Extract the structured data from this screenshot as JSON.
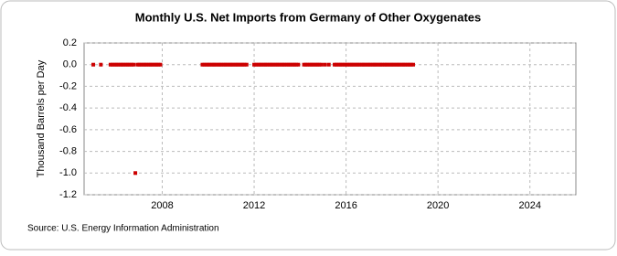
{
  "chart_data": {
    "type": "scatter",
    "title": "Monthly U.S. Net Imports from Germany of Other Oxygenates",
    "y_label": "Thousand Barrels per Day",
    "source": "Source: U.S. Energy Information Administration",
    "color": "#cc0000",
    "grid": true,
    "xlim": [
      2004.6,
      2026.0
    ],
    "xticks": [
      2008,
      2012,
      2016,
      2020,
      2024
    ],
    "ylim": [
      -1.2,
      0.2
    ],
    "yticks": [
      0.2,
      {
        "value": 0,
        "label": "0.0"
      },
      -0.2,
      -0.4,
      -0.6,
      -0.8,
      {
        "value": -1,
        "label": "-1.0"
      },
      -1.2
    ],
    "x": [
      2005,
      2005.33,
      2005.75,
      2005.83,
      2005.92,
      2006,
      2006.08,
      2006.17,
      2006.25,
      2006.33,
      2006.42,
      2006.5,
      2006.58,
      2006.67,
      2006.75,
      2006.83,
      2006.92,
      2007,
      2007.08,
      2007.17,
      2007.25,
      2007.33,
      2007.42,
      2007.5,
      2007.58,
      2007.67,
      2007.75,
      2007.83,
      2007.92,
      2009.75,
      2009.83,
      2009.92,
      2010,
      2010.08,
      2010.17,
      2010.25,
      2010.33,
      2010.42,
      2010.5,
      2010.58,
      2010.67,
      2010.75,
      2010.83,
      2010.92,
      2011,
      2011.08,
      2011.17,
      2011.25,
      2011.33,
      2011.42,
      2011.5,
      2011.58,
      2011.67,
      2012,
      2012.08,
      2012.17,
      2012.25,
      2012.33,
      2012.42,
      2012.5,
      2012.58,
      2012.67,
      2012.75,
      2012.83,
      2012.92,
      2013,
      2013.08,
      2013.17,
      2013.25,
      2013.33,
      2013.42,
      2013.5,
      2013.58,
      2013.67,
      2013.75,
      2013.83,
      2013.92,
      2014.17,
      2014.25,
      2014.33,
      2014.42,
      2014.5,
      2014.58,
      2014.67,
      2014.75,
      2014.83,
      2014.92,
      2015.08,
      2015.25,
      2015.5,
      2015.58,
      2015.67,
      2015.75,
      2015.83,
      2015.92,
      2016,
      2016.08,
      2016.17,
      2016.25,
      2016.33,
      2016.42,
      2016.5,
      2016.58,
      2016.67,
      2016.75,
      2016.83,
      2016.92,
      2017,
      2017.08,
      2017.17,
      2017.25,
      2017.33,
      2017.42,
      2017.5,
      2017.58,
      2017.67,
      2017.75,
      2017.83,
      2017.92,
      2018,
      2018.08,
      2018.17,
      2018.25,
      2018.33,
      2018.42,
      2018.5,
      2018.58,
      2018.67,
      2018.75,
      2018.83,
      2018.92
    ],
    "values": [
      0,
      0,
      0,
      0,
      0,
      0,
      0,
      0,
      0,
      0,
      0,
      0,
      0,
      0,
      0,
      -1,
      0,
      0,
      0,
      0,
      0,
      0,
      0,
      0,
      0,
      0,
      0,
      0,
      0,
      0,
      0,
      0,
      0,
      0,
      0,
      0,
      0,
      0,
      0,
      0,
      0,
      0,
      0,
      0,
      0,
      0,
      0,
      0,
      0,
      0,
      0,
      0,
      0,
      0,
      0,
      0,
      0,
      0,
      0,
      0,
      0,
      0,
      0,
      0,
      0,
      0,
      0,
      0,
      0,
      0,
      0,
      0,
      0,
      0,
      0,
      0,
      0,
      0,
      0,
      0,
      0,
      0,
      0,
      0,
      0,
      0,
      0,
      0,
      0,
      0,
      0,
      0,
      0,
      0,
      0,
      0,
      0,
      0,
      0,
      0,
      0,
      0,
      0,
      0,
      0,
      0,
      0,
      0,
      0,
      0,
      0,
      0,
      0,
      0,
      0,
      0,
      0,
      0,
      0,
      0,
      0,
      0,
      0,
      0,
      0,
      0,
      0,
      0,
      0,
      0,
      0
    ]
  }
}
